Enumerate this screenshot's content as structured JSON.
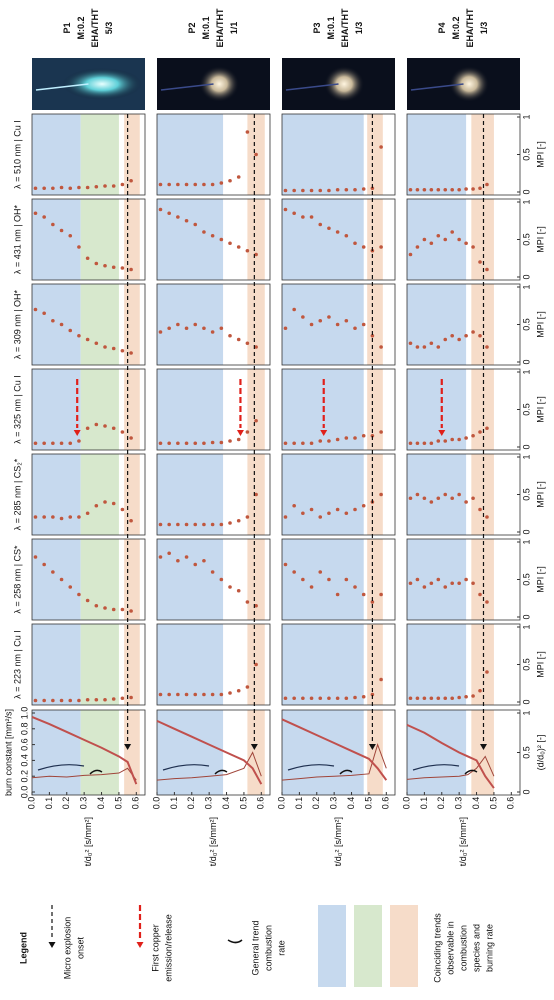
{
  "chart_data": [
    {
      "type": "scatter",
      "title": [
        "P1",
        "M:0.2",
        "EHA/THT",
        "5/3"
      ],
      "x": [
        0.02,
        0.07,
        0.12,
        0.17,
        0.22,
        0.27,
        0.32,
        0.37,
        0.42,
        0.47,
        0.52,
        0.57
      ],
      "xlim": [
        0,
        0.65
      ],
      "xticks": [
        {
          "value": 0,
          "label": "0.0"
        },
        0.1,
        0.2,
        0.3,
        0.4,
        0.5,
        0.6
      ],
      "xlabel": "t/d₀² [s/mm²]",
      "ylim": [
        0,
        1
      ],
      "yticks": [
        0,
        0.5,
        1
      ],
      "series": [
        {
          "name": "λ = 510 nm | Cu I",
          "color": "#c0573e",
          "values": [
            0.05,
            0.05,
            0.05,
            0.06,
            0.05,
            0.06,
            0.06,
            0.07,
            0.08,
            0.08,
            0.1,
            0.15
          ]
        },
        {
          "name": "λ = 431 nm | OH*",
          "color": "#c0573e",
          "values": [
            0.85,
            0.8,
            0.7,
            0.62,
            0.55,
            0.4,
            0.25,
            0.18,
            0.15,
            0.13,
            0.12,
            0.1
          ]
        },
        {
          "name": "λ = 309 nm | OH*",
          "color": "#c0573e",
          "values": [
            0.7,
            0.65,
            0.55,
            0.5,
            0.42,
            0.35,
            0.3,
            0.25,
            0.2,
            0.18,
            0.15,
            0.12
          ]
        },
        {
          "name": "λ = 325 nm | Cu I",
          "color": "#c0573e",
          "values": [
            0.05,
            0.05,
            0.05,
            0.05,
            0.05,
            0.08,
            0.25,
            0.3,
            0.28,
            0.25,
            0.2,
            0.12
          ]
        },
        {
          "name": "λ = 285 nm | CS₂*",
          "color": "#c0573e",
          "values": [
            0.2,
            0.2,
            0.2,
            0.18,
            0.2,
            0.2,
            0.25,
            0.35,
            0.4,
            0.38,
            0.3,
            0.15
          ]
        },
        {
          "name": "λ = 258 nm | CS*",
          "color": "#c0573e",
          "values": [
            0.8,
            0.7,
            0.6,
            0.5,
            0.4,
            0.3,
            0.22,
            0.15,
            0.12,
            0.1,
            0.1,
            0.08
          ]
        },
        {
          "name": "λ = 223 nm | Cu I",
          "color": "#c0573e",
          "values": [
            0.02,
            0.02,
            0.02,
            0.02,
            0.02,
            0.02,
            0.03,
            0.03,
            0.03,
            0.04,
            0.05,
            0.06
          ]
        }
      ],
      "bands": [
        {
          "range": [
            0,
            0.28
          ],
          "color": "#c6d9ee"
        },
        {
          "range": [
            0.28,
            0.5
          ],
          "color": "#d7e8cd"
        },
        {
          "range": [
            0.53,
            0.62
          ],
          "color": "#f6dcc9"
        }
      ],
      "onset": 0.55,
      "copper_release": 0.26,
      "burn": {
        "type": "line",
        "x": [
          0,
          0.1,
          0.2,
          0.3,
          0.4,
          0.5,
          0.55,
          0.6
        ],
        "ylim": [
          0,
          1
        ],
        "yticks": [
          {
            "value": 0,
            "label": "0.0"
          },
          0.2,
          0.4,
          0.6,
          0.8,
          {
            "value": 1,
            "label": "1.0"
          }
        ],
        "ylabel": "burn constant [mm²/s]",
        "y2lim": [
          0,
          1
        ],
        "series": [
          {
            "color": "#a0453a",
            "values": [
              0.18,
              0.2,
              0.19,
              0.21,
              0.22,
              0.24,
              0.3,
              0.15
            ]
          },
          {
            "color": "#c0504d",
            "axis": "y2",
            "values": [
              0.95,
              0.86,
              0.76,
              0.66,
              0.56,
              0.45,
              0.38,
              0.1
            ]
          }
        ]
      }
    },
    {
      "type": "scatter",
      "title": [
        "P2",
        "M:0.1",
        "EHA/THT",
        "1/1"
      ],
      "x": [
        0.02,
        0.07,
        0.12,
        0.17,
        0.22,
        0.27,
        0.32,
        0.37,
        0.42,
        0.47,
        0.52,
        0.57
      ],
      "xlim": [
        0,
        0.65
      ],
      "xticks": [
        {
          "value": 0,
          "label": "0.0"
        },
        0.1,
        0.2,
        0.3,
        0.4,
        0.5,
        0.6
      ],
      "xlabel": "t/d₀² [s/mm²]",
      "ylim": [
        0,
        1
      ],
      "series": [
        {
          "color": "#c0573e",
          "values": [
            0.1,
            0.1,
            0.1,
            0.1,
            0.1,
            0.1,
            0.1,
            0.12,
            0.15,
            0.2,
            0.8,
            0.5
          ]
        },
        {
          "color": "#c0573e",
          "values": [
            0.9,
            0.85,
            0.8,
            0.75,
            0.7,
            0.6,
            0.55,
            0.5,
            0.45,
            0.4,
            0.35,
            0.3
          ]
        },
        {
          "color": "#c0573e",
          "values": [
            0.4,
            0.45,
            0.5,
            0.45,
            0.5,
            0.45,
            0.4,
            0.45,
            0.35,
            0.3,
            0.25,
            0.2
          ]
        },
        {
          "color": "#c0573e",
          "values": [
            0.05,
            0.05,
            0.05,
            0.05,
            0.05,
            0.05,
            0.06,
            0.06,
            0.08,
            0.1,
            0.2,
            0.35
          ]
        },
        {
          "color": "#c0573e",
          "values": [
            0.1,
            0.1,
            0.1,
            0.1,
            0.1,
            0.1,
            0.1,
            0.1,
            0.12,
            0.15,
            0.2,
            0.5
          ]
        },
        {
          "color": "#c0573e",
          "values": [
            0.8,
            0.85,
            0.75,
            0.8,
            0.7,
            0.75,
            0.6,
            0.5,
            0.4,
            0.35,
            0.2,
            0.15
          ]
        },
        {
          "color": "#c0573e",
          "values": [
            0.1,
            0.1,
            0.1,
            0.1,
            0.1,
            0.1,
            0.1,
            0.1,
            0.12,
            0.15,
            0.2,
            0.5
          ]
        }
      ],
      "bands": [
        {
          "range": [
            0,
            0.38
          ],
          "color": "#c6d9ee"
        },
        {
          "range": [
            0.52,
            0.62
          ],
          "color": "#f6dcc9"
        }
      ],
      "onset": 0.56,
      "copper_release": 0.48,
      "burn": {
        "type": "line",
        "x": [
          0,
          0.1,
          0.2,
          0.3,
          0.4,
          0.5,
          0.55,
          0.6
        ],
        "ylim": [
          0,
          1
        ],
        "y2lim": [
          0,
          1
        ],
        "series": [
          {
            "color": "#a0453a",
            "values": [
              0.15,
              0.17,
              0.18,
              0.2,
              0.22,
              0.3,
              0.5,
              0.2
            ]
          },
          {
            "color": "#c0504d",
            "axis": "y2",
            "values": [
              0.9,
              0.8,
              0.7,
              0.6,
              0.5,
              0.4,
              0.3,
              0.1
            ]
          }
        ]
      }
    },
    {
      "type": "scatter",
      "title": [
        "P3",
        "M:0.1",
        "EHA/THT",
        "1/3"
      ],
      "x": [
        0.02,
        0.07,
        0.12,
        0.17,
        0.22,
        0.27,
        0.32,
        0.37,
        0.42,
        0.47,
        0.52,
        0.57
      ],
      "xlim": [
        0,
        0.65
      ],
      "xticks": [
        {
          "value": 0,
          "label": "0.0"
        },
        0.1,
        0.2,
        0.3,
        0.4,
        0.5,
        0.6
      ],
      "xlabel": "t/d₀² [s/mm²]",
      "ylim": [
        0,
        1
      ],
      "series": [
        {
          "color": "#c0573e",
          "values": [
            0.02,
            0.02,
            0.02,
            0.02,
            0.02,
            0.02,
            0.03,
            0.03,
            0.03,
            0.04,
            0.05,
            0.6
          ]
        },
        {
          "color": "#c0573e",
          "values": [
            0.9,
            0.85,
            0.8,
            0.8,
            0.7,
            0.65,
            0.6,
            0.55,
            0.45,
            0.4,
            0.35,
            0.4
          ]
        },
        {
          "color": "#c0573e",
          "values": [
            0.45,
            0.7,
            0.6,
            0.5,
            0.55,
            0.6,
            0.5,
            0.55,
            0.45,
            0.5,
            0.35,
            0.2
          ]
        },
        {
          "color": "#c0573e",
          "values": [
            0.05,
            0.05,
            0.05,
            0.05,
            0.08,
            0.08,
            0.1,
            0.12,
            0.12,
            0.15,
            0.15,
            0.2
          ]
        },
        {
          "color": "#c0573e",
          "values": [
            0.2,
            0.35,
            0.25,
            0.3,
            0.2,
            0.25,
            0.3,
            0.25,
            0.3,
            0.35,
            0.4,
            0.5
          ]
        },
        {
          "color": "#c0573e",
          "values": [
            0.7,
            0.6,
            0.5,
            0.4,
            0.6,
            0.5,
            0.3,
            0.5,
            0.4,
            0.3,
            0.2,
            0.3
          ]
        },
        {
          "color": "#c0573e",
          "values": [
            0.05,
            0.05,
            0.05,
            0.05,
            0.05,
            0.05,
            0.05,
            0.05,
            0.06,
            0.07,
            0.1,
            0.3
          ]
        }
      ],
      "bands": [
        {
          "range": [
            0,
            0.47
          ],
          "color": "#c6d9ee"
        },
        {
          "range": [
            0.49,
            0.58
          ],
          "color": "#f6dcc9"
        }
      ],
      "onset": 0.52,
      "copper_release": 0.24,
      "burn": {
        "type": "line",
        "x": [
          0,
          0.1,
          0.2,
          0.3,
          0.4,
          0.5,
          0.55,
          0.6
        ],
        "ylim": [
          0,
          1
        ],
        "y2lim": [
          0,
          1
        ],
        "series": [
          {
            "color": "#a0453a",
            "values": [
              0.15,
              0.17,
              0.19,
              0.2,
              0.21,
              0.23,
              0.6,
              0.3
            ]
          },
          {
            "color": "#c0504d",
            "axis": "y2",
            "values": [
              0.92,
              0.82,
              0.72,
              0.62,
              0.52,
              0.42,
              0.3,
              0.15
            ]
          }
        ]
      }
    },
    {
      "type": "scatter",
      "title": [
        "P4",
        "M:0.2",
        "EHA/THT",
        "1/3"
      ],
      "x": [
        0.02,
        0.06,
        0.1,
        0.14,
        0.18,
        0.22,
        0.26,
        0.3,
        0.34,
        0.38,
        0.42,
        0.46
      ],
      "xlim": [
        0,
        0.65
      ],
      "xticks": [
        {
          "value": 0,
          "label": "0.0"
        },
        0.1,
        0.2,
        0.3,
        0.4,
        0.5,
        0.6
      ],
      "xlabel": "t/d₀² [s/mm²]",
      "ylim": [
        0,
        1
      ],
      "yticks": [
        0,
        0.5,
        1
      ],
      "ylabel": "MPI [-]",
      "series": [
        {
          "color": "#c0573e",
          "values": [
            0.03,
            0.03,
            0.03,
            0.03,
            0.03,
            0.03,
            0.03,
            0.03,
            0.04,
            0.04,
            0.05,
            0.1
          ]
        },
        {
          "color": "#c0573e",
          "values": [
            0.3,
            0.4,
            0.5,
            0.45,
            0.55,
            0.5,
            0.6,
            0.5,
            0.45,
            0.4,
            0.2,
            0.1
          ]
        },
        {
          "color": "#c0573e",
          "values": [
            0.25,
            0.2,
            0.2,
            0.25,
            0.2,
            0.3,
            0.35,
            0.3,
            0.35,
            0.4,
            0.35,
            0.2
          ]
        },
        {
          "color": "#c0573e",
          "values": [
            0.05,
            0.05,
            0.05,
            0.05,
            0.08,
            0.08,
            0.1,
            0.1,
            0.12,
            0.15,
            0.2,
            0.25
          ]
        },
        {
          "color": "#c0573e",
          "values": [
            0.45,
            0.5,
            0.45,
            0.4,
            0.45,
            0.5,
            0.45,
            0.5,
            0.4,
            0.45,
            0.3,
            0.2
          ]
        },
        {
          "color": "#c0573e",
          "values": [
            0.45,
            0.5,
            0.4,
            0.45,
            0.5,
            0.4,
            0.45,
            0.45,
            0.5,
            0.45,
            0.3,
            0.2
          ]
        },
        {
          "color": "#c0573e",
          "values": [
            0.05,
            0.05,
            0.05,
            0.05,
            0.05,
            0.05,
            0.05,
            0.06,
            0.07,
            0.08,
            0.15,
            0.4
          ]
        }
      ],
      "bands": [
        {
          "range": [
            0,
            0.34
          ],
          "color": "#c6d9ee"
        },
        {
          "range": [
            0.37,
            0.5
          ],
          "color": "#f6dcc9"
        }
      ],
      "onset": 0.44,
      "copper_release": 0.2,
      "burn": {
        "type": "line",
        "x": [
          0,
          0.1,
          0.2,
          0.3,
          0.35,
          0.4,
          0.45,
          0.5
        ],
        "ylim": [
          0,
          1
        ],
        "y2lim": [
          0,
          1
        ],
        "y2ticks": [
          0,
          0.5,
          1
        ],
        "y2label": "(d/d₀)² [-]",
        "series": [
          {
            "color": "#a0453a",
            "values": [
              0.16,
              0.18,
              0.19,
              0.2,
              0.22,
              0.3,
              0.45,
              0.2
            ]
          },
          {
            "color": "#c0504d",
            "axis": "y2",
            "values": [
              0.85,
              0.75,
              0.62,
              0.5,
              0.45,
              0.4,
              0.2,
              0.05
            ]
          }
        ]
      }
    }
  ],
  "legend": {
    "title": "Legend",
    "items": [
      [
        "Micro explosion",
        "onset"
      ],
      [
        "First copper",
        "emission/release"
      ],
      [
        "General trend",
        "combustion",
        "rate"
      ],
      [
        "Coinciding trends",
        "observable in",
        "combustion",
        "species and",
        "burning rate"
      ]
    ],
    "colors": [
      "#c6d9ee",
      "#d7e8cd",
      "#f6dcc9"
    ]
  }
}
